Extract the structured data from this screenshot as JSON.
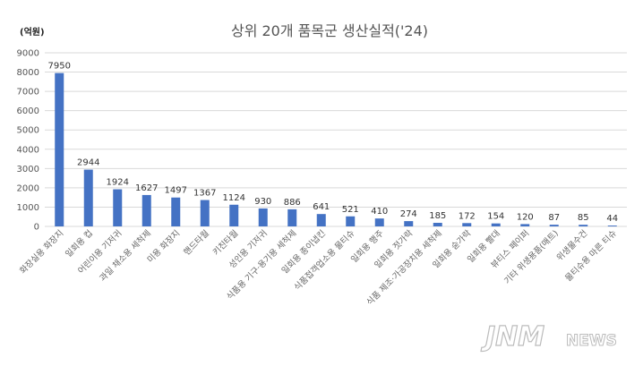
{
  "chart_data": {
    "type": "bar",
    "title": "상위 20개 품목군 생산실적('24)",
    "unit_label": "(억원)",
    "ylim": [
      0,
      9000
    ],
    "yticks": [
      0,
      1000,
      2000,
      3000,
      4000,
      5000,
      6000,
      7000,
      8000,
      9000
    ],
    "grid": true,
    "bar_color": "#4472c4",
    "categories": [
      "화장실용 화장지",
      "일회용 컵",
      "어린이용 기저귀",
      "과일 채소용 세척제",
      "미용 화장지",
      "핸드타월",
      "키친타월",
      "성인용 기저귀",
      "식품용 기구·용기용 세척제",
      "일회용 종이냅킨",
      "식품접객업소용 물티슈",
      "일회용 행주",
      "일회용 젓가락",
      "식품 제조·가공장치용 세척제",
      "일회용 숟가락",
      "일회용 빨대",
      "뷰티스 페이퍼",
      "기타 위생용품(매트)",
      "위생물수건",
      "물티슈용 마른 티슈"
    ],
    "values": [
      7950,
      2944,
      1924,
      1627,
      1497,
      1367,
      1124,
      930,
      886,
      641,
      521,
      410,
      274,
      185,
      172,
      154,
      120,
      87,
      85,
      44
    ]
  },
  "watermark": {
    "brand": "JNM",
    "suffix": "NEWS"
  }
}
